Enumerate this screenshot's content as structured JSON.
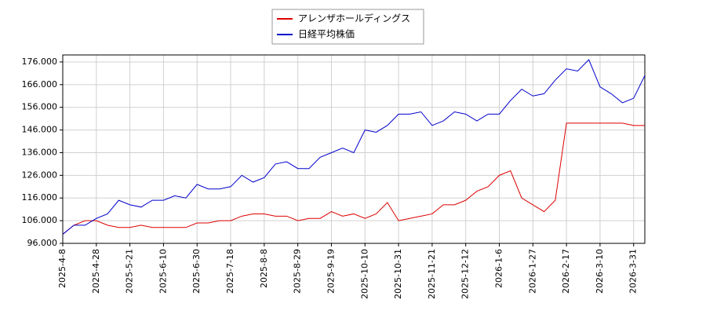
{
  "chart_data": {
    "type": "line",
    "x": [
      "2025-4-8",
      "2025-4-15",
      "2025-4-22",
      "2025-4-28",
      "2025-5-7",
      "2025-5-14",
      "2025-5-21",
      "2025-5-28",
      "2025-6-4",
      "2025-6-10",
      "2025-6-17",
      "2025-6-24",
      "2025-6-30",
      "2025-7-7",
      "2025-7-11",
      "2025-7-18",
      "2025-7-25",
      "2025-8-1",
      "2025-8-8",
      "2025-8-15",
      "2025-8-22",
      "2025-8-29",
      "2025-9-5",
      "2025-9-12",
      "2025-9-19",
      "2025-9-26",
      "2025-10-3",
      "2025-10-10",
      "2025-10-17",
      "2025-10-24",
      "2025-10-31",
      "2025-11-7",
      "2025-11-14",
      "2025-11-21",
      "2025-11-28",
      "2025-12-5",
      "2025-12-12",
      "2025-12-19",
      "2025-12-26",
      "2026-1-6",
      "2026-1-13",
      "2026-1-20",
      "2026-1-27",
      "2026-2-3",
      "2026-2-10",
      "2026-2-17",
      "2026-2-24",
      "2026-3-3",
      "2026-3-10",
      "2026-3-17",
      "2026-3-24",
      "2026-3-31",
      "2026-4-3"
    ],
    "series": [
      {
        "name": "アレンザホールディングス",
        "color": "#dd0000",
        "values": [
          100,
          104,
          106,
          106,
          104,
          103,
          103,
          104,
          103,
          103,
          103,
          103,
          105,
          105,
          106,
          106,
          108,
          109,
          109,
          108,
          108,
          106,
          107,
          107,
          110,
          108,
          109,
          107,
          109,
          114,
          106,
          107,
          108,
          109,
          113,
          113,
          115,
          119,
          121,
          126,
          128,
          116,
          113,
          110,
          115,
          149,
          149,
          149,
          149,
          149,
          149,
          148,
          148
        ]
      },
      {
        "name": "日経平均株価",
        "color": "#0000cc",
        "values": [
          100,
          104,
          104,
          107,
          109,
          115,
          113,
          112,
          115,
          115,
          117,
          116,
          122,
          120,
          120,
          121,
          126,
          123,
          125,
          131,
          132,
          129,
          129,
          134,
          136,
          138,
          136,
          146,
          145,
          148,
          153,
          153,
          154,
          148,
          150,
          154,
          153,
          150,
          153,
          153,
          159,
          164,
          161,
          162,
          168,
          173,
          172,
          177,
          165,
          162,
          158,
          160,
          170
        ]
      }
    ],
    "xticks": [
      "2025-4-8",
      "2025-4-28",
      "2025-5-21",
      "2025-6-10",
      "2025-6-30",
      "2025-7-18",
      "2025-8-8",
      "2025-8-29",
      "2025-9-19",
      "2025-10-10",
      "2025-10-31",
      "2025-11-21",
      "2025-12-12",
      "2026-1-6",
      "2026-1-27",
      "2026-2-17",
      "2026-3-10",
      "2026-3-31"
    ],
    "ylim": [
      96,
      179.1
    ],
    "yticks": [
      {
        "value": 96,
        "label": "96.000"
      },
      {
        "value": 106,
        "label": "106.000"
      },
      {
        "value": 116,
        "label": "116.000"
      },
      {
        "value": 126,
        "label": "126.000"
      },
      {
        "value": 136,
        "label": "136.000"
      },
      {
        "value": 146,
        "label": "146.000"
      },
      {
        "value": 156,
        "label": "156.000"
      },
      {
        "value": 166,
        "label": "166.000"
      },
      {
        "value": 176,
        "label": "176.000"
      }
    ],
    "grid": true,
    "legend": "top"
  }
}
